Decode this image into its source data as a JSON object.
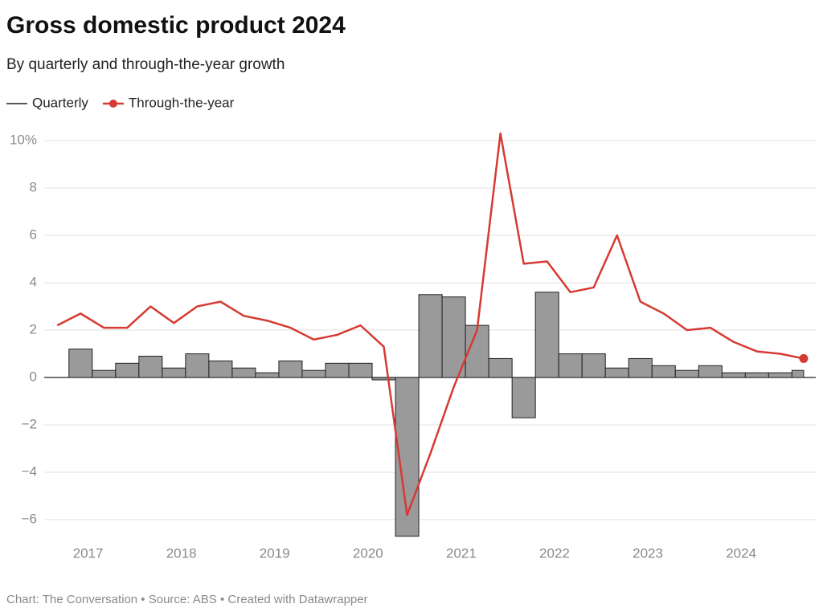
{
  "chart_data": {
    "type": "combo",
    "title": "Gross domestic product 2024",
    "subtitle": "By quarterly and through-the-year growth",
    "footer": "Chart: The Conversation • Source: ABS • Created with Datawrapper",
    "x": [
      2016.67,
      2016.92,
      2017.17,
      2017.42,
      2017.67,
      2017.92,
      2018.17,
      2018.42,
      2018.67,
      2018.92,
      2019.17,
      2019.42,
      2019.67,
      2019.92,
      2020.17,
      2020.42,
      2020.67,
      2020.92,
      2021.17,
      2021.42,
      2021.67,
      2021.92,
      2022.17,
      2022.42,
      2022.67,
      2022.92,
      2023.17,
      2023.42,
      2023.67,
      2023.92,
      2024.17,
      2024.42,
      2024.67
    ],
    "xlim": [
      2016.53,
      2024.8
    ],
    "xticks": [
      2017,
      2018,
      2019,
      2020,
      2021,
      2022,
      2023,
      2024
    ],
    "ylim": [
      -6.9,
      10.6
    ],
    "yticks": [
      {
        "value": 10,
        "label": "10%"
      },
      8,
      6,
      4,
      2,
      0,
      {
        "value": -2,
        "label": "−2"
      },
      {
        "value": -4,
        "label": "−4"
      },
      {
        "value": -6,
        "label": "−6"
      }
    ],
    "grid": true,
    "series": [
      {
        "name": "Quarterly",
        "type": "bar",
        "color": "#9a9a9a",
        "values": [
          null,
          1.2,
          0.3,
          0.6,
          0.9,
          0.4,
          1.0,
          0.7,
          0.4,
          0.2,
          0.7,
          0.3,
          0.6,
          0.6,
          -0.1,
          -6.7,
          3.5,
          3.4,
          2.2,
          0.8,
          -1.7,
          3.6,
          1.0,
          1.0,
          0.4,
          0.8,
          0.5,
          0.3,
          0.5,
          0.2,
          0.2,
          0.2,
          0.3
        ]
      },
      {
        "name": "Through-the-year",
        "type": "line",
        "color": "#d63a32",
        "values": [
          2.2,
          2.7,
          2.1,
          2.1,
          3.0,
          2.3,
          3.0,
          3.2,
          2.6,
          2.4,
          2.1,
          1.6,
          1.8,
          2.2,
          1.3,
          -5.8,
          -3.2,
          -0.4,
          2.0,
          10.3,
          4.8,
          4.9,
          3.6,
          3.8,
          6.0,
          3.2,
          2.7,
          2.0,
          2.1,
          1.5,
          1.1,
          1.0,
          0.8
        ]
      }
    ]
  }
}
